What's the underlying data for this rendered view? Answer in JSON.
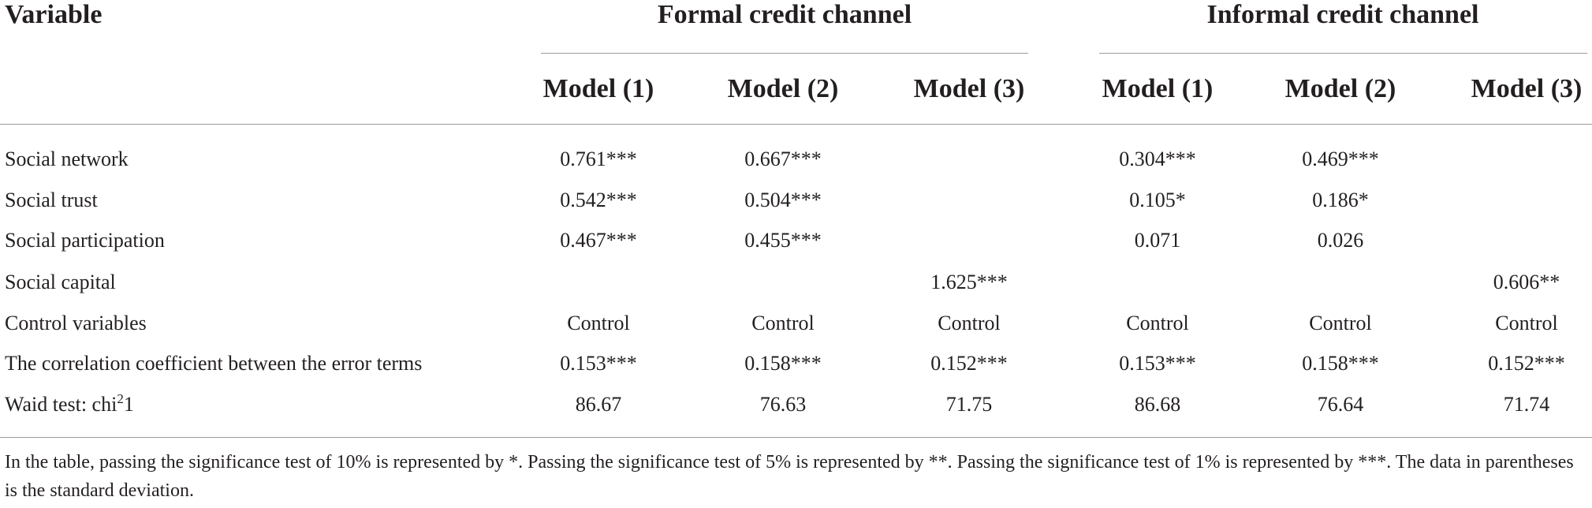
{
  "table": {
    "corner": "Variable",
    "groups": [
      "Formal credit channel",
      "Informal credit channel"
    ],
    "models": [
      "Model (1)",
      "Model (2)",
      "Model (3)",
      "Model (1)",
      "Model (2)",
      "Model (3)"
    ],
    "rows": [
      {
        "label": "Social network",
        "cells": [
          "0.761***",
          "0.667***",
          null,
          "0.304***",
          "0.469***",
          null
        ]
      },
      {
        "label": "Social trust",
        "cells": [
          "0.542***",
          "0.504***",
          null,
          "0.105*",
          "0.186*",
          null
        ]
      },
      {
        "label": "Social participation",
        "cells": [
          "0.467***",
          "0.455***",
          null,
          "0.071",
          "0.026",
          null
        ]
      },
      {
        "label": "Social capital",
        "cells": [
          null,
          null,
          "1.625***",
          null,
          null,
          "0.606**"
        ]
      },
      {
        "label": "Control variables",
        "cells": [
          "Control",
          "Control",
          "Control",
          "Control",
          "Control",
          "Control"
        ]
      },
      {
        "label": "The correlation coefficient between the error terms",
        "cells": [
          "0.153***",
          "0.158***",
          "0.152***",
          "0.153***",
          "0.158***",
          "0.152***"
        ]
      },
      {
        "label": "Waid test: chi",
        "label_sup": "2",
        "label_suffix": "1",
        "cells": [
          "86.67",
          "76.63",
          "71.75",
          "86.68",
          "76.64",
          "71.74"
        ]
      }
    ],
    "footnote": "In the table, passing the significance test of 10% is represented by *. Passing the significance test of 5% is represented by **. Passing the significance test of 1% is represented by ***. The data in parentheses is the standard deviation."
  }
}
